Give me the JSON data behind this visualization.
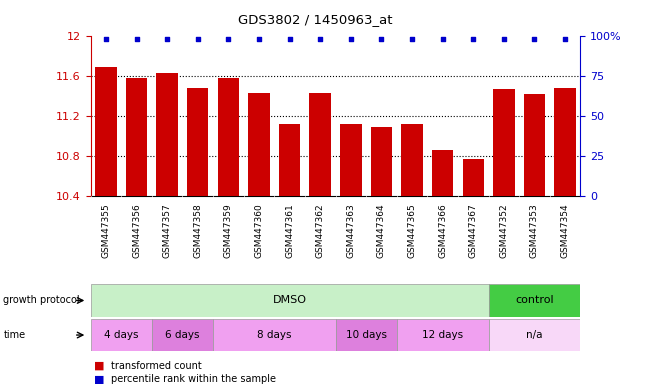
{
  "title": "GDS3802 / 1450963_at",
  "samples": [
    "GSM447355",
    "GSM447356",
    "GSM447357",
    "GSM447358",
    "GSM447359",
    "GSM447360",
    "GSM447361",
    "GSM447362",
    "GSM447363",
    "GSM447364",
    "GSM447365",
    "GSM447366",
    "GSM447367",
    "GSM447352",
    "GSM447353",
    "GSM447354"
  ],
  "transformed_counts": [
    11.69,
    11.58,
    11.63,
    11.48,
    11.58,
    11.43,
    11.12,
    11.43,
    11.12,
    11.09,
    11.12,
    10.86,
    10.77,
    11.47,
    11.42,
    11.48
  ],
  "ylim_left": [
    10.4,
    12.0
  ],
  "ylim_right": [
    0,
    100
  ],
  "bar_color": "#cc0000",
  "dot_color": "#0000cc",
  "grid_yticks_left": [
    10.4,
    10.8,
    11.2,
    11.6,
    12.0
  ],
  "grid_yticks_right": [
    0,
    25,
    50,
    75,
    100
  ],
  "dmso_color": "#c8f0c8",
  "control_color": "#44cc44",
  "time_colors": [
    "#f0a0f0",
    "#dd80dd",
    "#f0a0f0",
    "#dd80dd",
    "#f0a0f0",
    "#f8d8f8"
  ],
  "left_axis_color": "#cc0000",
  "right_axis_color": "#0000cc",
  "tick_bg_color": "#d8d8d8",
  "bg_color": "#ffffff",
  "time_groups": [
    {
      "label": "4 days",
      "xstart": -0.5,
      "xend": 1.5
    },
    {
      "label": "6 days",
      "xstart": 1.5,
      "xend": 3.5
    },
    {
      "label": "8 days",
      "xstart": 3.5,
      "xend": 7.5
    },
    {
      "label": "10 days",
      "xstart": 7.5,
      "xend": 9.5
    },
    {
      "label": "12 days",
      "xstart": 9.5,
      "xend": 12.5
    },
    {
      "label": "n/a",
      "xstart": 12.5,
      "xend": 15.5
    }
  ],
  "dmso_xstart": -0.5,
  "dmso_xend": 12.5,
  "control_xstart": 12.5,
  "control_xend": 15.5
}
